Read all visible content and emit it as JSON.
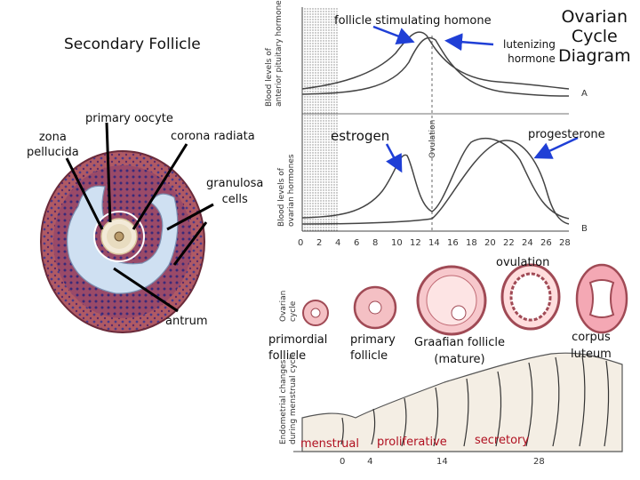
{
  "title": {
    "line1": "Ovarian",
    "line2": "Cycle",
    "line3": "Diagram"
  },
  "follicle_panel": {
    "title": "Secondary Follicle",
    "labels": {
      "primary_oocyte": "primary oocyte",
      "zona_1": "zona",
      "zona_2": "pellucida",
      "corona_radiata": "corona radiata",
      "granulosa_1": "granulosa",
      "granulosa_2": "cells",
      "antrum": "antrum"
    }
  },
  "hormone_graph": {
    "fsh_label": "follicle stimulating homone",
    "lh_label_1": "lutenizing",
    "lh_label_2": "hormone",
    "estrogen_label": "estrogen",
    "progesterone_label": "progesterone",
    "axis_top_1": "Blood levels of",
    "axis_top_2": "anterior pituitary hormones",
    "axis_bottom_1": "Blood levels of",
    "axis_bottom_2": "ovarian hormones",
    "ovulation_axis": "Ovulation",
    "panel_a": "A",
    "panel_b": "B",
    "x_ticks": [
      "0",
      "2",
      "4",
      "6",
      "8",
      "10",
      "12",
      "14",
      "16",
      "18",
      "20",
      "22",
      "24",
      "26",
      "28"
    ]
  },
  "ovarian_cycle": {
    "axis_1": "Ovarian",
    "axis_2": "cycle",
    "ovulation": "ovulation",
    "primordial_1": "primordial",
    "primordial_2": "follicle",
    "primary_1": "primary",
    "primary_2": "follicle",
    "graafian_1": "Graafian follicle",
    "graafian_2": "(mature)",
    "corpus_1": "corpus",
    "corpus_2": "luteum"
  },
  "endometrium": {
    "axis_1": "Endometrial changes",
    "axis_2": "during menstrual cycle",
    "menstrual": "menstrual",
    "proliferative": "proliferative",
    "secretory": "secretory",
    "x_ticks": [
      "0",
      "4",
      "14",
      "28"
    ]
  },
  "colors": {
    "arrow": "#1f3fd6",
    "follicle_wall": "#a04a55",
    "antrum": "#cfe0f2",
    "red_text": "#b01020"
  }
}
